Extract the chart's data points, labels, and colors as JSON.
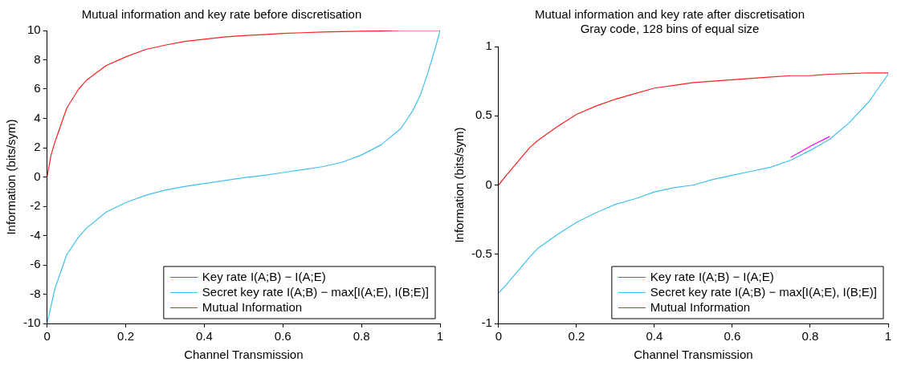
{
  "chart_data": [
    {
      "type": "line",
      "title": "Mutual information and key rate before discretisation",
      "xlabel": "Channel Transmission",
      "ylabel": "Information (bits/sym)",
      "xlim": [
        0,
        1
      ],
      "xticks": [
        0,
        0.2,
        0.4,
        0.6,
        0.8,
        1
      ],
      "ylim": [
        -10,
        10
      ],
      "yticks": [
        -10,
        -8,
        -6,
        -4,
        -2,
        0,
        2,
        4,
        6,
        8,
        10
      ],
      "legend": "bottom right",
      "x": [
        0,
        0.01,
        0.02,
        0.05,
        0.08,
        0.1,
        0.15,
        0.2,
        0.25,
        0.3,
        0.35,
        0.4,
        0.45,
        0.5,
        0.55,
        0.6,
        0.65,
        0.7,
        0.75,
        0.8,
        0.85,
        0.9,
        0.93,
        0.95,
        0.97,
        0.99,
        1
      ],
      "series": [
        {
          "name": "Key rate I(A;B) − I(A;E)",
          "color": "#ff00ff",
          "values": [
            null,
            null,
            null,
            null,
            null,
            null,
            null,
            null,
            null,
            null,
            null,
            null,
            null,
            null,
            null,
            null,
            null,
            null,
            null,
            null,
            null,
            null,
            null,
            null,
            null,
            null,
            null
          ]
        },
        {
          "name": "Secret key rate I(A;B) − max[I(A;E), I(B;E)]",
          "color": "#40c0f0",
          "values": [
            -10,
            -8.8,
            -7.6,
            -5.3,
            -4.1,
            -3.5,
            -2.4,
            -1.75,
            -1.25,
            -0.9,
            -0.65,
            -0.45,
            -0.25,
            -0.05,
            0.1,
            0.3,
            0.5,
            0.7,
            1.0,
            1.5,
            2.2,
            3.3,
            4.5,
            5.6,
            7.2,
            9.0,
            10
          ]
        },
        {
          "name": "Mutual Information",
          "color": "#ff2020",
          "values": [
            0,
            1.5,
            2.4,
            4.7,
            6.0,
            6.6,
            7.6,
            8.2,
            8.7,
            9.0,
            9.25,
            9.4,
            9.55,
            9.65,
            9.72,
            9.8,
            9.85,
            9.9,
            9.93,
            9.95,
            9.97,
            10,
            10,
            10,
            10,
            10,
            10
          ]
        }
      ]
    },
    {
      "type": "line",
      "title": "Mutual information and key rate after discretisation",
      "subtitle": "Gray code, 128 bins of equal size",
      "xlabel": "Channel Transmission",
      "ylabel": "Information (bits/sym)",
      "xlim": [
        0,
        1
      ],
      "xticks": [
        0,
        0.2,
        0.4,
        0.6,
        0.8,
        1
      ],
      "ylim": [
        -1,
        1
      ],
      "yticks": [
        -1,
        -0.5,
        0,
        0.5,
        1
      ],
      "legend": "bottom right",
      "x": [
        0,
        0.02,
        0.05,
        0.08,
        0.1,
        0.15,
        0.2,
        0.25,
        0.3,
        0.35,
        0.4,
        0.45,
        0.5,
        0.55,
        0.6,
        0.65,
        0.7,
        0.75,
        0.8,
        0.85,
        0.9,
        0.95,
        1
      ],
      "series": [
        {
          "name": "Key rate I(A;B) − I(A;E)",
          "color": "#ff00ff",
          "values": [
            null,
            null,
            null,
            null,
            null,
            null,
            null,
            null,
            null,
            null,
            null,
            null,
            null,
            null,
            null,
            null,
            null,
            0.2,
            0.28,
            0.35,
            null,
            null,
            null
          ]
        },
        {
          "name": "Secret key rate I(A;B) − max[I(A;E), I(B;E)]",
          "color": "#40c0f0",
          "values": [
            -0.78,
            -0.72,
            -0.62,
            -0.52,
            -0.46,
            -0.36,
            -0.27,
            -0.2,
            -0.14,
            -0.1,
            -0.05,
            -0.02,
            0.0,
            0.04,
            0.07,
            0.1,
            0.13,
            0.18,
            0.25,
            0.33,
            0.45,
            0.6,
            0.8
          ]
        },
        {
          "name": "Mutual Information",
          "color": "#ff2020",
          "values": [
            0,
            0.07,
            0.17,
            0.27,
            0.32,
            0.42,
            0.51,
            0.57,
            0.62,
            0.66,
            0.7,
            0.72,
            0.74,
            0.75,
            0.76,
            0.77,
            0.78,
            0.79,
            0.79,
            0.8,
            0.805,
            0.81,
            0.81
          ]
        }
      ]
    }
  ]
}
